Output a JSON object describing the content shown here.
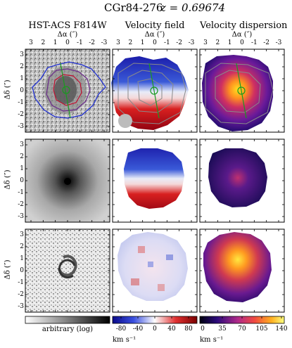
{
  "header": {
    "object": "CGr84-276",
    "redshift": "z = 0.69674"
  },
  "columns": [
    {
      "title": "HST-ACS F814W"
    },
    {
      "title": "Velocity field"
    },
    {
      "title": "Velocity dispersion"
    }
  ],
  "axes": {
    "x_label": "Δα (″)",
    "y_label": "Δδ (″)",
    "x_ticks": [
      "3",
      "2",
      "1",
      "0",
      "-1",
      "-2",
      "-3"
    ],
    "y_ticks": [
      "3",
      "2",
      "1",
      "0",
      "-1",
      "-2",
      "-3"
    ]
  },
  "colorbars": [
    {
      "label": "arbitrary (log)",
      "ticks": [],
      "palette": "greys"
    },
    {
      "label": "km s⁻¹",
      "ticks": [
        "-80",
        "-40",
        "0",
        "40",
        "80"
      ],
      "palette": "bwr"
    },
    {
      "label": "km s⁻¹",
      "ticks": [
        "0",
        "35",
        "70",
        "105",
        "140"
      ],
      "palette": "plasma"
    }
  ],
  "colors": {
    "contour_blue": "#1f2fd0",
    "contour_red": "#c01030",
    "contour_green": "#1a9a20",
    "contour_grey": "#8a8a8a"
  }
}
